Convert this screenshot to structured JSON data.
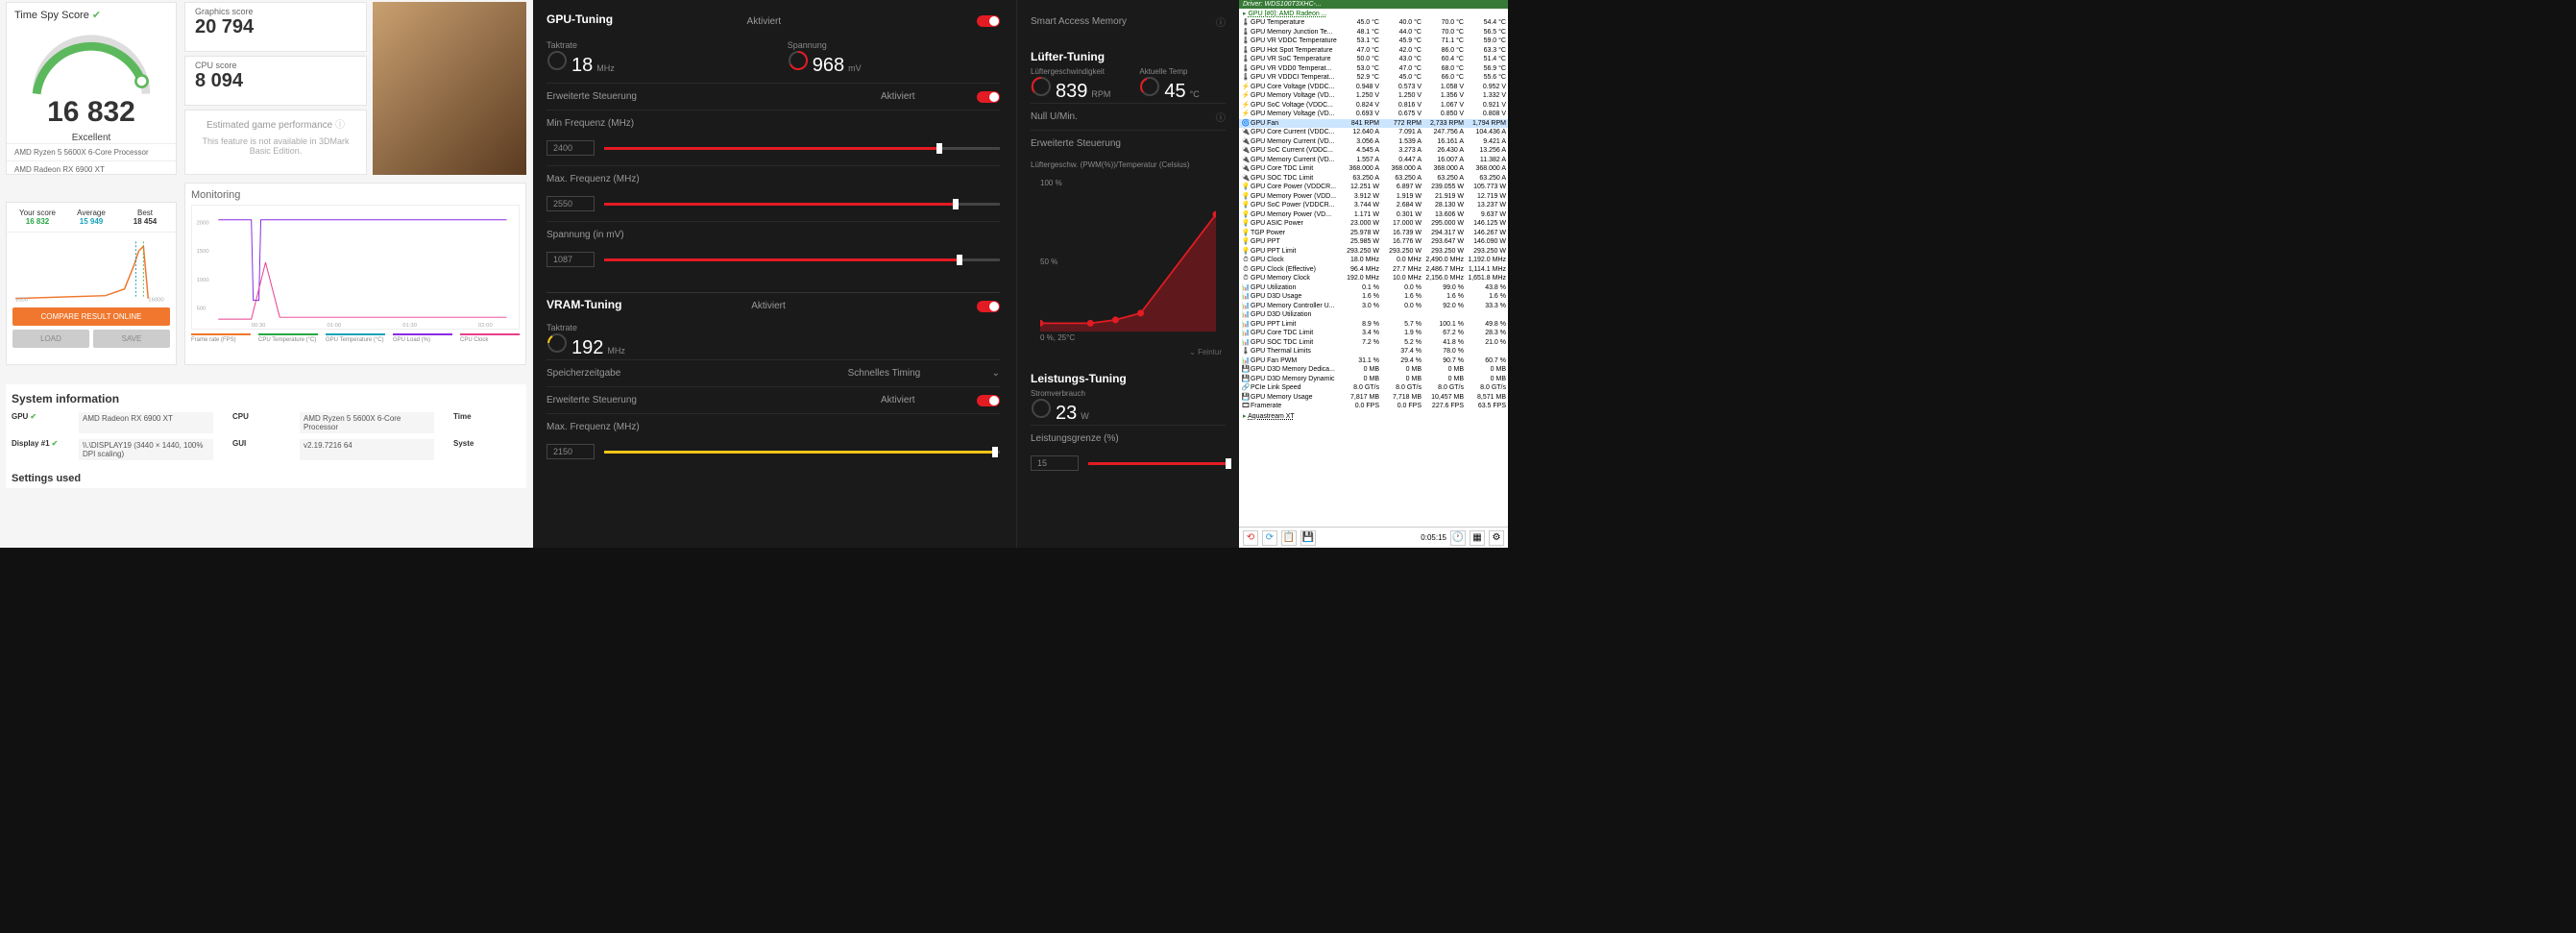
{
  "colors": {
    "accent_red": "#e31b23",
    "accent_orange": "#f0772d",
    "accent_green": "#5cb85c",
    "accent_yellow": "#f5c518",
    "amd_bg": "#1a1a1a"
  },
  "dmark": {
    "title": "Time Spy Score",
    "score": "16 832",
    "rating": "Excellent",
    "cpu": "AMD Ryzen 5 5600X 6-Core Processor",
    "gpu": "AMD Radeon RX 6900 XT",
    "gfx": {
      "label": "Graphics score",
      "value": "20 794"
    },
    "cpuscore": {
      "label": "CPU score",
      "value": "8 094"
    },
    "est": {
      "label": "Estimated game performance",
      "note": "This feature is not available in 3DMark Basic Edition."
    },
    "compare": {
      "your_lbl": "Your score",
      "your_val": "16 832",
      "avg_lbl": "Average",
      "avg_val": "15 949",
      "best_lbl": "Best",
      "best_val": "18 454",
      "xmin": "1000",
      "xmax": "16000",
      "btn": "COMPARE RESULT ONLINE",
      "load": "LOAD",
      "save": "SAVE"
    },
    "monitoring": {
      "label": "Monitoring",
      "ylabel": "Frequency (MHz)",
      "ticks": [
        "2000",
        "1500",
        "1000",
        "500"
      ],
      "xticks": [
        "00:30",
        "01:00",
        "01:30",
        "02:00"
      ],
      "legend": [
        {
          "l": "Frame rate (FPS)",
          "c": "#f0772d"
        },
        {
          "l": "CPU Temperature (°C)",
          "c": "#28a745"
        },
        {
          "l": "GPU Temperature (°C)",
          "c": "#17a2b8"
        },
        {
          "l": "GPU Load (%)",
          "c": "#8a2be2"
        },
        {
          "l": "CPU Clock",
          "c": "#e83e8c"
        }
      ]
    },
    "sysinfo": {
      "title": "System information",
      "rows": [
        {
          "k": "GPU",
          "v": "AMD Radeon RX 6900 XT",
          "k2": "CPU",
          "v2": "AMD Ryzen 5 5600X 6-Core Processor",
          "k3": "Time"
        },
        {
          "k": "Display #1",
          "v": "\\\\.\\DISPLAY19 (3440 × 1440, 100% DPI scaling)",
          "k2": "GUI",
          "v2": "v2.19.7216 64",
          "k3": "Syste"
        }
      ],
      "settings": "Settings used"
    }
  },
  "amd": {
    "sam": {
      "label": "Smart Access Memory"
    },
    "gpu_tuning": {
      "title": "GPU-Tuning",
      "status": "Aktiviert",
      "takt_lbl": "Taktrate",
      "takt_val": "18",
      "takt_unit": "MHz",
      "volt_lbl": "Spannung",
      "volt_val": "968",
      "volt_unit": "mV",
      "ext": "Erweiterte Steuerung",
      "ext_status": "Aktiviert",
      "minf_lbl": "Min Frequenz (MHz)",
      "minf_val": "2400",
      "minf_pct": 84,
      "maxf_lbl": "Max. Frequenz (MHz)",
      "maxf_val": "2550",
      "maxf_pct": 88,
      "sp_lbl": "Spannung (in mV)",
      "sp_val": "1087",
      "sp_pct": 89
    },
    "vram": {
      "title": "VRAM-Tuning",
      "status": "Aktiviert",
      "takt_lbl": "Taktrate",
      "takt_val": "192",
      "takt_unit": "MHz",
      "mem_lbl": "Speicherzeitgabe",
      "mem_val": "Schnelles Timing",
      "ext": "Erweiterte Steuerung",
      "ext_status": "Aktiviert",
      "maxf_lbl": "Max. Frequenz (MHz)",
      "maxf_val": "2150",
      "maxf_pct": 98
    },
    "fan": {
      "title": "Lüfter-Tuning",
      "speed_lbl": "Lüftergeschwindigkeit",
      "speed_val": "839",
      "speed_unit": "RPM",
      "temp_lbl": "Aktuelle Temp",
      "temp_val": "45",
      "temp_unit": "°C",
      "zero_lbl": "Null U/Min.",
      "ext": "Erweiterte Steuerung",
      "chart_lbl": "Lüftergeschw. (PWM(%))/Temperatur (Celsius)",
      "y100": "100 %",
      "y50": "50 %",
      "y0": "0 %, 25°C",
      "fine": "Feintur",
      "curve": [
        [
          0,
          10
        ],
        [
          30,
          10
        ],
        [
          45,
          12
        ],
        [
          60,
          18
        ],
        [
          100,
          80
        ]
      ]
    },
    "perf": {
      "title": "Leistungs-Tuning",
      "pwr_lbl": "Stromverbrauch",
      "pwr_val": "23",
      "pwr_unit": "W",
      "limit_lbl": "Leistungsgrenze (%)",
      "limit_val": "15",
      "limit_pct": 100
    }
  },
  "hwinfo": {
    "driver": "Driver: WDS100T3XHC-...",
    "device": "GPU [#0]: AMD Radeon ...",
    "cols": [
      "",
      "",
      "",
      ""
    ],
    "rows": [
      {
        "i": "🌡",
        "n": "GPU Temperature",
        "c": [
          "45.0 °C",
          "40.0 °C",
          "70.0 °C",
          "54.4 °C"
        ]
      },
      {
        "i": "🌡",
        "n": "GPU Memory Junction Te...",
        "c": [
          "48.1 °C",
          "44.0 °C",
          "70.0 °C",
          "56.5 °C"
        ]
      },
      {
        "i": "🌡",
        "n": "GPU VR VDDC Temperature",
        "c": [
          "53.1 °C",
          "45.9 °C",
          "71.1 °C",
          "59.0 °C"
        ]
      },
      {
        "i": "🌡",
        "n": "GPU Hot Spot Temperature",
        "c": [
          "47.0 °C",
          "42.0 °C",
          "86.0 °C",
          "63.3 °C"
        ]
      },
      {
        "i": "🌡",
        "n": "GPU VR SoC Temperature",
        "c": [
          "50.0 °C",
          "43.0 °C",
          "60.4 °C",
          "51.4 °C"
        ]
      },
      {
        "i": "🌡",
        "n": "GPU VR VDD0 Temperat...",
        "c": [
          "53.0 °C",
          "47.0 °C",
          "68.0 °C",
          "56.9 °C"
        ]
      },
      {
        "i": "🌡",
        "n": "GPU VR VDDCI Temperat...",
        "c": [
          "52.9 °C",
          "45.0 °C",
          "66.0 °C",
          "55.6 °C"
        ]
      },
      {
        "i": "⚡",
        "n": "GPU Core Voltage (VDDC...",
        "c": [
          "0.948 V",
          "0.573 V",
          "1.058 V",
          "0.952 V"
        ]
      },
      {
        "i": "⚡",
        "n": "GPU Memory Voltage (VD...",
        "c": [
          "1.250 V",
          "1.250 V",
          "1.356 V",
          "1.332 V"
        ]
      },
      {
        "i": "⚡",
        "n": "GPU SoC Voltage (VDDC...",
        "c": [
          "0.824 V",
          "0.816 V",
          "1.067 V",
          "0.921 V"
        ]
      },
      {
        "i": "⚡",
        "n": "GPU Memory Voltage (VD...",
        "c": [
          "0.693 V",
          "0.675 V",
          "0.850 V",
          "0.808 V"
        ]
      },
      {
        "i": "🌀",
        "n": "GPU Fan",
        "sel": true,
        "c": [
          "841 RPM",
          "772 RPM",
          "2,733 RPM",
          "1,794 RPM"
        ]
      },
      {
        "i": "🔌",
        "n": "GPU Core Current (VDDC...",
        "c": [
          "12.640 A",
          "7.091 A",
          "247.756 A",
          "104.436 A"
        ]
      },
      {
        "i": "🔌",
        "n": "GPU Memory Current (VD...",
        "c": [
          "3.056 A",
          "1.539 A",
          "16.161 A",
          "9.421 A"
        ]
      },
      {
        "i": "🔌",
        "n": "GPU SoC Current (VDDC...",
        "c": [
          "4.545 A",
          "3.273 A",
          "26.430 A",
          "13.256 A"
        ]
      },
      {
        "i": "🔌",
        "n": "GPU Memory Current (VD...",
        "c": [
          "1.557 A",
          "0.447 A",
          "16.007 A",
          "11.382 A"
        ]
      },
      {
        "i": "🔌",
        "n": "GPU Core TDC Limit",
        "c": [
          "368.000 A",
          "368.000 A",
          "368.000 A",
          "368.000 A"
        ]
      },
      {
        "i": "🔌",
        "n": "GPU SOC TDC Limit",
        "c": [
          "63.250 A",
          "63.250 A",
          "63.250 A",
          "63.250 A"
        ]
      },
      {
        "i": "💡",
        "n": "GPU Core Power (VDDCR...",
        "c": [
          "12.251 W",
          "6.897 W",
          "239.055 W",
          "105.773 W"
        ]
      },
      {
        "i": "💡",
        "n": "GPU Memory Power (VDD...",
        "c": [
          "3.912 W",
          "1.919 W",
          "21.919 W",
          "12.719 W"
        ]
      },
      {
        "i": "💡",
        "n": "GPU SoC Power (VDDCR...",
        "c": [
          "3.744 W",
          "2.684 W",
          "28.130 W",
          "13.237 W"
        ]
      },
      {
        "i": "💡",
        "n": "GPU Memory Power (VD...",
        "c": [
          "1.171 W",
          "0.301 W",
          "13.606 W",
          "9.637 W"
        ]
      },
      {
        "i": "💡",
        "n": "GPU ASIC Power",
        "c": [
          "23.000 W",
          "17.000 W",
          "295.000 W",
          "146.125 W"
        ]
      },
      {
        "i": "💡",
        "n": "TGP Power",
        "c": [
          "25.978 W",
          "16.739 W",
          "294.317 W",
          "146.267 W"
        ]
      },
      {
        "i": "💡",
        "n": "GPU PPT",
        "c": [
          "25.985 W",
          "16.776 W",
          "293.647 W",
          "146.090 W"
        ]
      },
      {
        "i": "💡",
        "n": "GPU PPT Limit",
        "c": [
          "293.250 W",
          "293.250 W",
          "293.250 W",
          "293.250 W"
        ]
      },
      {
        "i": "⏱",
        "n": "GPU Clock",
        "c": [
          "18.0 MHz",
          "0.0 MHz",
          "2,490.0 MHz",
          "1,192.0 MHz"
        ]
      },
      {
        "i": "⏱",
        "n": "GPU Clock (Effective)",
        "c": [
          "96.4 MHz",
          "27.7 MHz",
          "2,486.7 MHz",
          "1,114.1 MHz"
        ]
      },
      {
        "i": "⏱",
        "n": "GPU Memory Clock",
        "c": [
          "192.0 MHz",
          "10.0 MHz",
          "2,156.0 MHz",
          "1,651.8 MHz"
        ]
      },
      {
        "i": "📊",
        "n": "GPU Utilization",
        "c": [
          "0.1 %",
          "0.0 %",
          "99.0 %",
          "43.8 %"
        ]
      },
      {
        "i": "📊",
        "n": "GPU D3D Usage",
        "c": [
          "1.6 %",
          "1.6 %",
          "1.6 %",
          "1.6 %"
        ]
      },
      {
        "i": "📊",
        "n": "GPU Memory Controller U...",
        "c": [
          "3.0 %",
          "0.0 %",
          "92.0 %",
          "33.3 %"
        ]
      },
      {
        "i": "📊",
        "n": "GPU D3D Utilization",
        "c": [
          "",
          "",
          "",
          ""
        ]
      },
      {
        "i": "📊",
        "n": "GPU PPT Limit",
        "c": [
          "8.9 %",
          "5.7 %",
          "100.1 %",
          "49.8 %"
        ]
      },
      {
        "i": "📊",
        "n": "GPU Core TDC Limit",
        "c": [
          "3.4 %",
          "1.9 %",
          "67.2 %",
          "28.3 %"
        ]
      },
      {
        "i": "📊",
        "n": "GPU SOC TDC Limit",
        "c": [
          "7.2 %",
          "5.2 %",
          "41.8 %",
          "21.0 %"
        ]
      },
      {
        "i": "🌡",
        "n": "GPU Thermal Limits",
        "c": [
          "",
          "37.4 %",
          "78.0 %",
          ""
        ]
      },
      {
        "i": "📊",
        "n": "GPU Fan PWM",
        "c": [
          "31.1 %",
          "29.4 %",
          "90.7 %",
          "60.7 %"
        ]
      },
      {
        "i": "💾",
        "n": "GPU D3D Memory Dedica...",
        "c": [
          "0 MB",
          "0 MB",
          "0 MB",
          "0 MB"
        ]
      },
      {
        "i": "💾",
        "n": "GPU D3D Memory Dynamic",
        "c": [
          "0 MB",
          "0 MB",
          "0 MB",
          "0 MB"
        ]
      },
      {
        "i": "🔗",
        "n": "PCIe Link Speed",
        "c": [
          "8.0 GT/s",
          "8.0 GT/s",
          "8.0 GT/s",
          "8.0 GT/s"
        ]
      },
      {
        "i": "💾",
        "n": "GPU Memory Usage",
        "c": [
          "7,817 MB",
          "7,718 MB",
          "10,457 MB",
          "8,571 MB"
        ]
      },
      {
        "i": "🎞",
        "n": "Framerate",
        "c": [
          "0.0 FPS",
          "0.0 FPS",
          "227.6 FPS",
          "63.5 FPS"
        ]
      }
    ],
    "aqua": "Aquastream XT",
    "time": "0:05:15"
  }
}
